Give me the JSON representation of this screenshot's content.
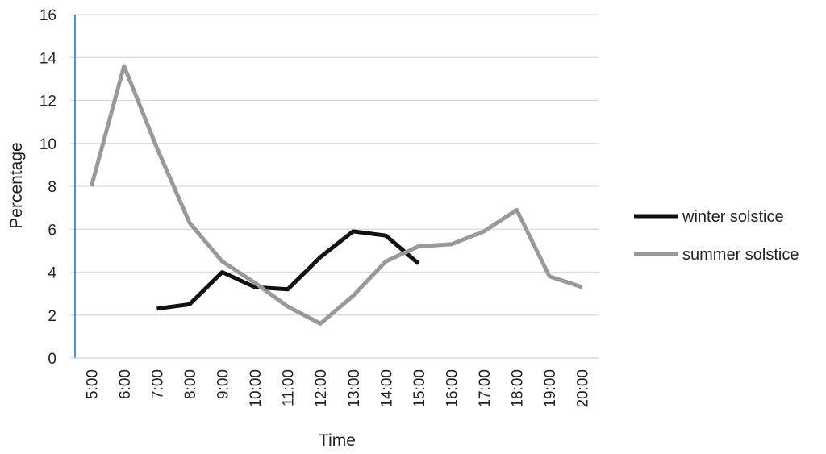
{
  "chart_data": {
    "type": "line",
    "title": "",
    "xlabel": "Time",
    "ylabel": "Percentage",
    "categories": [
      "5:00",
      "6:00",
      "7:00",
      "8:00",
      "9:00",
      "10:00",
      "11:00",
      "12:00",
      "13:00",
      "14:00",
      "15:00",
      "16:00",
      "17:00",
      "18:00",
      "19:00",
      "20:00"
    ],
    "ylim": [
      0,
      16
    ],
    "yticks": [
      "0",
      "2",
      "4",
      "6",
      "8",
      "10",
      "12",
      "14",
      "16"
    ],
    "grid": "horizontal",
    "legend_position": "right",
    "series": [
      {
        "name": "winter solstice",
        "color": "#111111",
        "values": [
          null,
          null,
          2.3,
          2.5,
          4.0,
          3.3,
          3.2,
          4.7,
          5.9,
          5.7,
          4.4,
          null,
          null,
          null,
          null,
          null
        ]
      },
      {
        "name": "summer solstice",
        "color": "#999999",
        "values": [
          8.0,
          13.6,
          9.8,
          6.3,
          4.5,
          3.5,
          2.4,
          1.6,
          2.9,
          4.5,
          5.2,
          5.3,
          5.9,
          6.9,
          3.8,
          3.3
        ]
      }
    ]
  }
}
